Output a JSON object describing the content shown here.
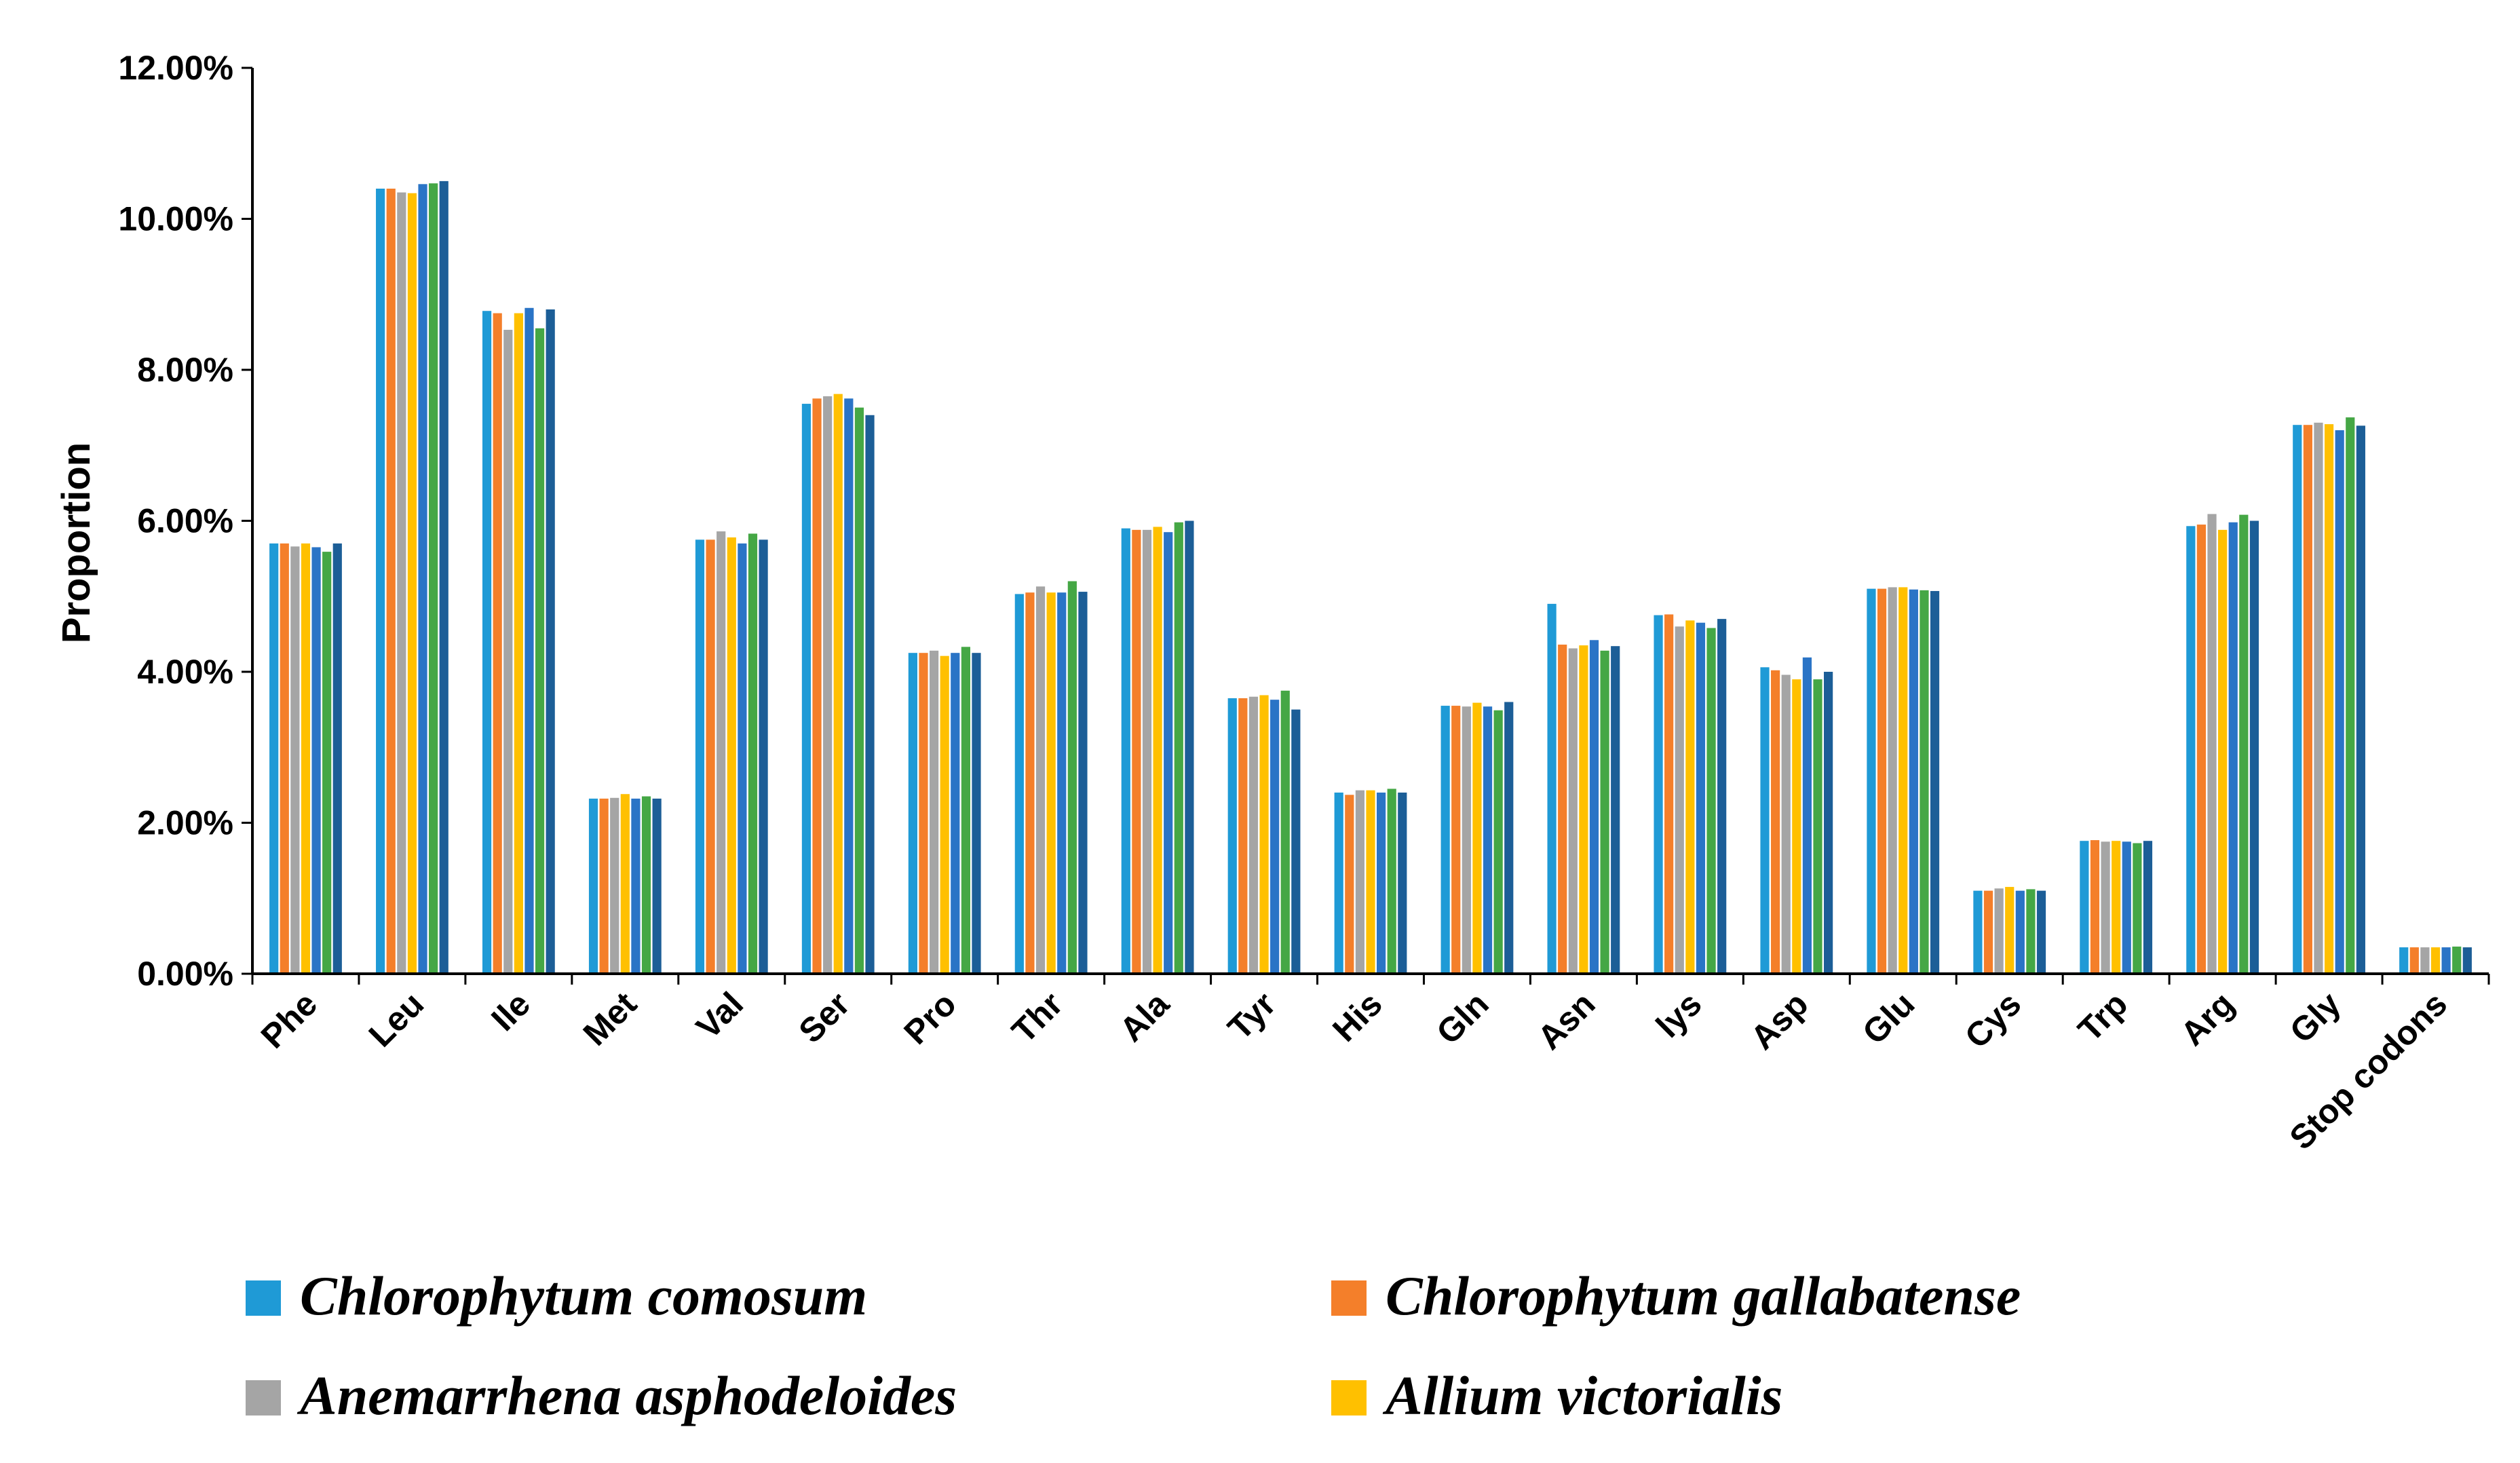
{
  "chart_data": {
    "type": "bar",
    "title": "",
    "xlabel": "",
    "ylabel": "Proportion",
    "ylim": [
      0,
      12
    ],
    "yticks": [
      "0.00%",
      "2.00%",
      "4.00%",
      "6.00%",
      "8.00%",
      "10.00%",
      "12.00%"
    ],
    "categories": [
      "Phe",
      "Leu",
      "Ile",
      "Met",
      "Val",
      "Ser",
      "Pro",
      "Thr",
      "Ala",
      "Tyr",
      "His",
      "Gln",
      "Asn",
      "lys",
      "Asp",
      "Glu",
      "Cys",
      "Trp",
      "Arg",
      "Gly",
      "Stop codons"
    ],
    "series": [
      {
        "name": "Chlorophytum comosum",
        "color": "#1f9ad6",
        "values": [
          5.7,
          10.4,
          8.78,
          2.32,
          5.75,
          7.55,
          4.25,
          5.03,
          5.9,
          3.65,
          2.4,
          3.55,
          4.9,
          4.75,
          4.06,
          5.1,
          1.1,
          1.76,
          5.93,
          7.27,
          0.35
        ]
      },
      {
        "name": "Chlorophytum gallabatense",
        "color": "#f47f2a",
        "values": [
          5.7,
          10.4,
          8.75,
          2.32,
          5.75,
          7.62,
          4.25,
          5.05,
          5.88,
          3.65,
          2.37,
          3.55,
          4.36,
          4.76,
          4.02,
          5.1,
          1.1,
          1.77,
          5.95,
          7.27,
          0.35
        ]
      },
      {
        "name": "Anemarrhena asphodeloides",
        "color": "#a5a5a5",
        "values": [
          5.66,
          10.35,
          8.53,
          2.33,
          5.86,
          7.65,
          4.28,
          5.13,
          5.88,
          3.67,
          2.43,
          3.54,
          4.31,
          4.6,
          3.96,
          5.12,
          1.13,
          1.75,
          6.09,
          7.3,
          0.35
        ]
      },
      {
        "name": "Allium victorialis",
        "color": "#ffc000",
        "values": [
          5.7,
          10.34,
          8.75,
          2.38,
          5.78,
          7.68,
          4.21,
          5.05,
          5.92,
          3.69,
          2.43,
          3.59,
          4.35,
          4.68,
          3.9,
          5.12,
          1.15,
          1.76,
          5.88,
          7.28,
          0.35
        ]
      }
    ],
    "extra_series": [
      {
        "color": "#2a74c6",
        "values": [
          5.65,
          10.46,
          8.82,
          2.32,
          5.7,
          7.62,
          4.25,
          5.05,
          5.85,
          3.63,
          2.4,
          3.54,
          4.42,
          4.65,
          4.19,
          5.09,
          1.1,
          1.75,
          5.98,
          7.2,
          0.35
        ]
      },
      {
        "color": "#45a745",
        "values": [
          5.59,
          10.47,
          8.55,
          2.35,
          5.83,
          7.5,
          4.33,
          5.2,
          5.98,
          3.75,
          2.45,
          3.49,
          4.28,
          4.58,
          3.9,
          5.08,
          1.12,
          1.73,
          6.08,
          7.37,
          0.36
        ]
      },
      {
        "color": "#1c5e97",
        "values": [
          5.7,
          10.5,
          8.8,
          2.32,
          5.75,
          7.4,
          4.25,
          5.06,
          6.0,
          3.5,
          2.4,
          3.6,
          4.34,
          4.7,
          4.0,
          5.07,
          1.1,
          1.76,
          6.0,
          7.26,
          0.35
        ]
      }
    ],
    "legend_position": "bottom"
  }
}
